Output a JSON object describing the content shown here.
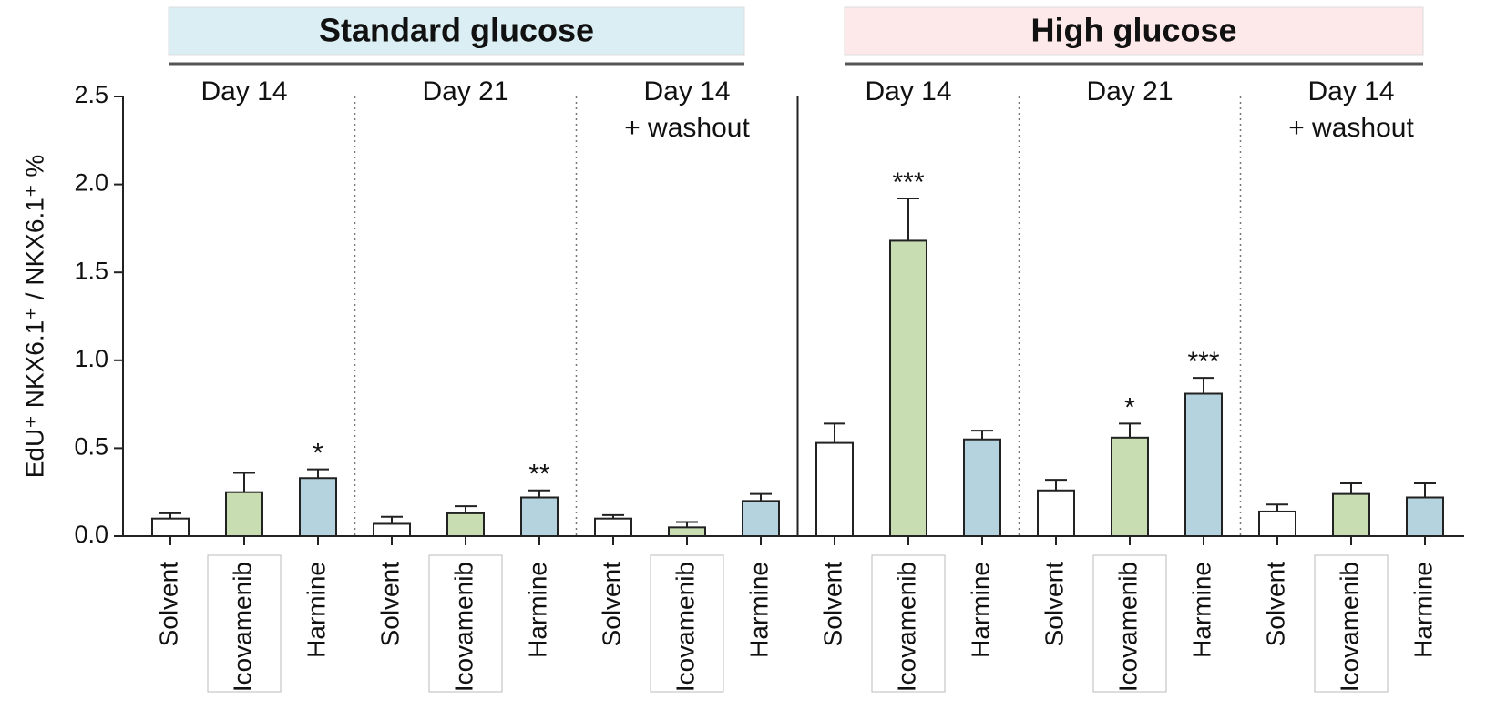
{
  "chart_data": {
    "type": "bar",
    "y_label": "EdU⁺ NKX6.1⁺ / NKX6.1⁺ %",
    "categories": [
      "Solvent",
      "Icovamenib",
      "Harmine",
      "Solvent",
      "Icovamenib",
      "Harmine",
      "Solvent",
      "Icovamenib",
      "Harmine",
      "Solvent",
      "Icovamenib",
      "Harmine",
      "Solvent",
      "Icovamenib",
      "Harmine",
      "Solvent",
      "Icovamenib",
      "Harmine"
    ],
    "values": [
      0.1,
      0.25,
      0.33,
      0.07,
      0.13,
      0.22,
      0.1,
      0.05,
      0.2,
      0.53,
      1.68,
      0.55,
      0.26,
      0.56,
      0.81,
      0.14,
      0.24,
      0.22
    ],
    "errors": [
      0.03,
      0.11,
      0.05,
      0.04,
      0.04,
      0.04,
      0.02,
      0.03,
      0.04,
      0.11,
      0.24,
      0.05,
      0.06,
      0.08,
      0.09,
      0.04,
      0.06,
      0.08
    ],
    "colors": [
      "#ffffff",
      "#c9ddb3",
      "#b5d3de",
      "#ffffff",
      "#c9ddb3",
      "#b5d3de",
      "#ffffff",
      "#c9ddb3",
      "#b5d3de",
      "#ffffff",
      "#c9ddb3",
      "#b5d3de",
      "#ffffff",
      "#c9ddb3",
      "#b5d3de",
      "#ffffff",
      "#c9ddb3",
      "#b5d3de"
    ],
    "ylim": [
      0,
      2.5
    ],
    "yticks": [
      {
        "value": 0,
        "label": "0.0"
      },
      {
        "value": 0.5,
        "label": "0.5"
      },
      {
        "value": 1,
        "label": "1.0"
      },
      {
        "value": 1.5,
        "label": "1.5"
      },
      {
        "value": 2,
        "label": "2.0"
      },
      {
        "value": 2.5,
        "label": "2.5"
      }
    ],
    "conditions": [
      {
        "name": "Standard glucose",
        "color": "#daeef3"
      },
      {
        "name": "High glucose",
        "color": "#fde9e9"
      }
    ],
    "timepoints": [
      [
        "Day 14"
      ],
      [
        "Day 21"
      ],
      [
        "Day 14",
        "+ washout"
      ],
      [
        "Day 14"
      ],
      [
        "Day 21"
      ],
      [
        "Day 14",
        "+ washout"
      ]
    ],
    "annotations": [
      {
        "index": 2,
        "text": "*"
      },
      {
        "index": 5,
        "text": "**"
      },
      {
        "index": 10,
        "text": "***"
      },
      {
        "index": 13,
        "text": "*"
      },
      {
        "index": 14,
        "text": "***"
      }
    ]
  }
}
